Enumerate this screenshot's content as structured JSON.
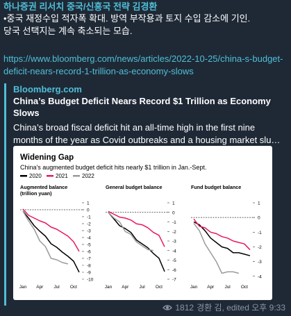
{
  "message": {
    "sender": "하나증권 리서치 중국/신흥국 전략 김경환",
    "line1": "•중국 재정수입 적자폭 확대. 방역 부작용과 토지 수입 감소에 기인.",
    "line2": "당국 선택지는 계속 축소되는 모습.",
    "link": "https://www.bloomberg.com/news/articles/2022-10-25/china-s-budget-deficit-nears-record-1-trillion-as-economy-slows"
  },
  "preview": {
    "site": "Bloomberg.com",
    "title": "China’s Budget Deficit Nears Record $1 Trillion as Economy Slows",
    "desc_line1": "China’s broad fiscal deficit hit an all-time high in the first nine",
    "desc_line2": "months of the year as Covid outbreaks and a housing market slu…"
  },
  "footer": {
    "views": "1812",
    "meta": "경환 김, edited 오후 9:33",
    "icon": "eye-icon"
  },
  "chart_data": {
    "title": "Widening Gap",
    "subtitle": "China's augmented budget deficit hits nearly $1 trillion in Jan.-Sept.",
    "legend": [
      {
        "name": "2020",
        "color": "#000000"
      },
      {
        "name": "2021",
        "color": "#e8185a"
      },
      {
        "name": "2022",
        "color": "#9a9a9a"
      }
    ],
    "panels": [
      {
        "title": "Augmented balance",
        "subtitle": "(trillion yuan)",
        "type": "line",
        "ylim": [
          -10,
          1
        ],
        "yticks": [
          "1",
          "0",
          "-1",
          "-2",
          "-3",
          "-4",
          "-5",
          "-6",
          "-7",
          "-8",
          "-9",
          "-10"
        ],
        "xticks": [
          "Jan",
          "Apr",
          "Jul",
          "Oct"
        ],
        "months": [
          1,
          2,
          3,
          4,
          5,
          6,
          7,
          8,
          9,
          10,
          11
        ],
        "series": [
          {
            "name": "2020",
            "values": [
              -0.2,
              -1.2,
              -2.3,
              -3.1,
              -3.8,
              -4.9,
              -5.4,
              -6.1,
              -6.7,
              -7.4,
              -9.0
            ]
          },
          {
            "name": "2021",
            "values": [
              0.1,
              -0.8,
              -1.2,
              -1.6,
              -1.9,
              -2.5,
              -2.8,
              -3.3,
              -3.8,
              -4.6,
              -6.0
            ]
          },
          {
            "name": "2022",
            "values": [
              -0.2,
              -1.6,
              -2.8,
              -4.5,
              -5.3,
              -7.0,
              -7.2,
              -7.6,
              -7.8,
              null,
              null
            ]
          }
        ]
      },
      {
        "title": "General budget balance",
        "subtitle": "",
        "type": "line",
        "ylim": [
          -7,
          1
        ],
        "yticks": [
          "1",
          "0",
          "-1",
          "-2",
          "-3",
          "-4",
          "-5",
          "-6",
          "-7"
        ],
        "xticks": [
          "Jan",
          "Apr",
          "Jul",
          "Oct"
        ],
        "months": [
          1,
          2,
          3,
          4,
          5,
          6,
          7,
          8,
          9,
          10,
          11
        ],
        "series": [
          {
            "name": "2020",
            "values": [
              0.0,
              -0.7,
              -1.4,
              -1.7,
              -2.1,
              -2.9,
              -3.3,
              -3.7,
              -4.3,
              -4.8,
              -6.2
            ]
          },
          {
            "name": "2021",
            "values": [
              0.1,
              -0.2,
              -0.5,
              -0.6,
              -0.8,
              -1.2,
              -1.3,
              -1.6,
              -2.1,
              -2.4,
              -3.6
            ]
          },
          {
            "name": "2022",
            "values": [
              0.0,
              -0.6,
              -1.0,
              -2.0,
              -2.3,
              -3.1,
              -3.5,
              -3.9,
              -4.0,
              null,
              null
            ]
          }
        ]
      },
      {
        "title": "Fund budget balance",
        "subtitle": "",
        "type": "line",
        "ylim": [
          -4.2,
          1
        ],
        "yticks": [
          "1",
          "0",
          "-1",
          "-2",
          "-3",
          "-4"
        ],
        "xticks": [
          "Jan",
          "Apr",
          "Jul",
          "Oct"
        ],
        "months": [
          1,
          2,
          3,
          4,
          5,
          6,
          7,
          8,
          9,
          10,
          11
        ],
        "series": [
          {
            "name": "2020",
            "values": [
              -0.3,
              -0.5,
              -0.9,
              -1.4,
              -1.7,
              -2.0,
              -2.1,
              -2.4,
              -2.4,
              -2.5,
              -2.6
            ]
          },
          {
            "name": "2021",
            "values": [
              -0.1,
              -0.6,
              -0.7,
              -1.0,
              -1.1,
              -1.3,
              -1.4,
              -1.6,
              -1.7,
              -1.8,
              -2.2
            ]
          },
          {
            "name": "2022",
            "values": [
              -0.4,
              -0.9,
              -1.8,
              -2.4,
              -3.0,
              -3.8,
              -3.7,
              -3.7,
              -3.8,
              null,
              null
            ]
          }
        ]
      }
    ]
  }
}
